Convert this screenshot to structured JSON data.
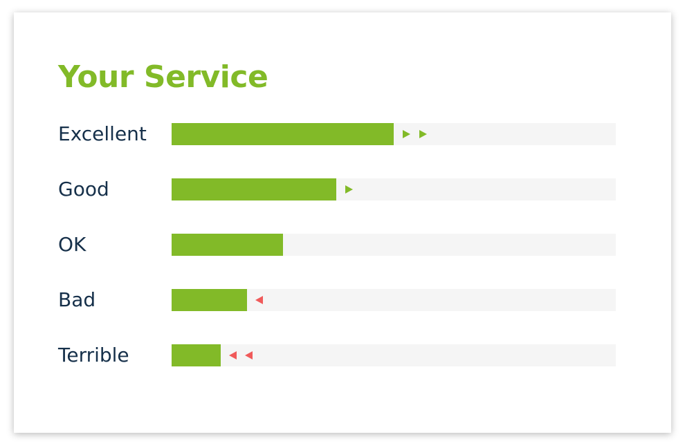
{
  "title": "Your Service",
  "colors": {
    "accent": "#82ba28",
    "label": "#16304a",
    "track": "#f5f5f5",
    "negative": "#f05a5a"
  },
  "ratings": [
    {
      "label": "Excellent",
      "fill_fraction": 0.5,
      "trend": "up",
      "arrow_count": 2,
      "arrow_icon": "triangle-right-icon"
    },
    {
      "label": "Good",
      "fill_fraction": 0.37,
      "trend": "up",
      "arrow_count": 1,
      "arrow_icon": "triangle-right-icon"
    },
    {
      "label": "OK",
      "fill_fraction": 0.25,
      "trend": "none",
      "arrow_count": 0,
      "arrow_icon": ""
    },
    {
      "label": "Bad",
      "fill_fraction": 0.17,
      "trend": "down",
      "arrow_count": 1,
      "arrow_icon": "triangle-left-icon"
    },
    {
      "label": "Terrible",
      "fill_fraction": 0.11,
      "trend": "down",
      "arrow_count": 2,
      "arrow_icon": "triangle-left-icon"
    }
  ]
}
